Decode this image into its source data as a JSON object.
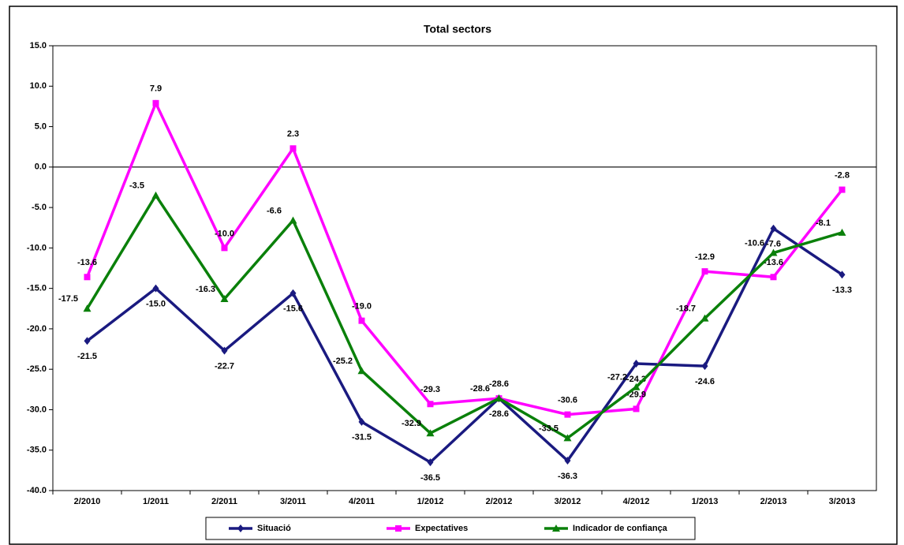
{
  "chart_data": {
    "type": "line",
    "title": "Total sectors",
    "categories": [
      "2/2010",
      "1/2011",
      "2/2011",
      "3/2011",
      "4/2011",
      "1/2012",
      "2/2012",
      "3/2012",
      "4/2012",
      "1/2013",
      "2/2013",
      "3/2013"
    ],
    "series": [
      {
        "name": "Situació",
        "color": "#1a1a80",
        "marker": "diamond",
        "values": [
          -21.5,
          -15.0,
          -22.7,
          -15.6,
          -31.5,
          -36.5,
          -28.6,
          -36.3,
          -24.3,
          -24.6,
          -7.6,
          -13.3
        ],
        "value_labels": [
          "-21.5",
          "-15.0",
          "-22.7",
          "-15.6",
          "-31.5",
          "-36.5",
          "-28.6",
          "-36.3",
          "-24.3",
          "-24.6",
          "-7.6",
          "-13.3"
        ]
      },
      {
        "name": "Expectatives",
        "color": "#ff00ff",
        "marker": "square",
        "values": [
          -13.6,
          7.9,
          -10.0,
          2.3,
          -19.0,
          -29.3,
          -28.6,
          -30.6,
          -29.9,
          -12.9,
          -13.6,
          -2.8
        ],
        "value_labels": [
          "-13.6",
          "7.9",
          "-10.0",
          "2.3",
          "-19.0",
          "-29.3",
          "-28.6",
          "-30.6",
          "-29.9",
          "-12.9",
          "-13.6",
          "-2.8"
        ]
      },
      {
        "name": "Indicador de confiança",
        "color": "#0a800a",
        "marker": "triangle",
        "values": [
          -17.5,
          -3.5,
          -16.3,
          -6.6,
          -25.2,
          -32.9,
          -28.6,
          -33.5,
          -27.2,
          -18.7,
          -10.6,
          -8.1
        ],
        "value_labels": [
          "-17.5",
          "-3.5",
          "-16.3",
          "-6.6",
          "-25.2",
          "-32.9",
          "-28.6",
          "-33.5",
          "-27.2",
          "-18.7",
          "-10.6",
          "-8.1"
        ]
      }
    ],
    "ylim": [
      -40,
      15
    ],
    "yticks": [
      {
        "value": -40,
        "label": "-40.0"
      },
      {
        "value": -35,
        "label": "-35.0"
      },
      {
        "value": -30,
        "label": "-30.0"
      },
      {
        "value": -25,
        "label": "-25.0"
      },
      {
        "value": -20,
        "label": "-20.0"
      },
      {
        "value": -15,
        "label": "-15.0"
      },
      {
        "value": -10,
        "label": "-10.0"
      },
      {
        "value": -5,
        "label": "-5.0"
      },
      {
        "value": 0,
        "label": "0.0"
      },
      {
        "value": 5,
        "label": "5.0"
      },
      {
        "value": 10,
        "label": "10.0"
      },
      {
        "value": 15,
        "label": "15.0"
      }
    ],
    "grid": false,
    "legend": "bottom"
  }
}
